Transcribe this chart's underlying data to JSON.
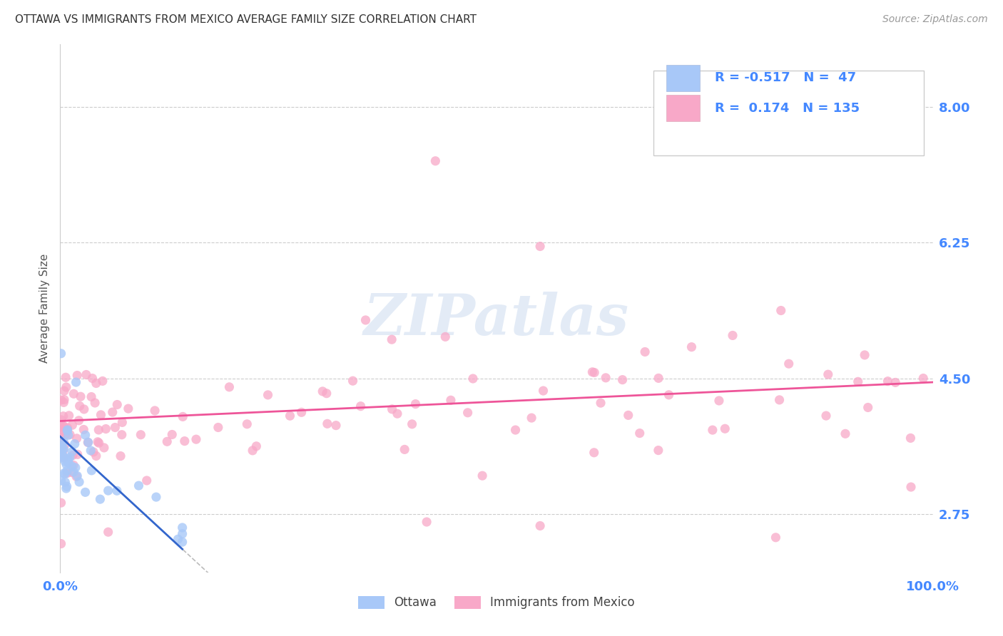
{
  "title": "OTTAWA VS IMMIGRANTS FROM MEXICO AVERAGE FAMILY SIZE CORRELATION CHART",
  "source": "Source: ZipAtlas.com",
  "ylabel": "Average Family Size",
  "xlim": [
    0.0,
    1.0
  ],
  "ylim": [
    2.0,
    8.8
  ],
  "yticks": [
    2.75,
    4.5,
    6.25,
    8.0
  ],
  "xticklabels": [
    "0.0%",
    "100.0%"
  ],
  "watermark": "ZIPatlas",
  "legend_labels": [
    "Ottawa",
    "Immigrants from Mexico"
  ],
  "ottawa_color": "#a8c8f8",
  "mexico_color": "#f8a8c8",
  "ottawa_line_color": "#3366cc",
  "mexico_line_color": "#ee5599",
  "dashed_line_color": "#bbbbbb",
  "r_ottawa": -0.517,
  "n_ottawa": 47,
  "r_mexico": 0.174,
  "n_mexico": 135,
  "grid_color": "#cccccc",
  "title_color": "#333333",
  "axis_color": "#4488ff",
  "legend_text_color": "#111111",
  "ylabel_color": "#555555"
}
